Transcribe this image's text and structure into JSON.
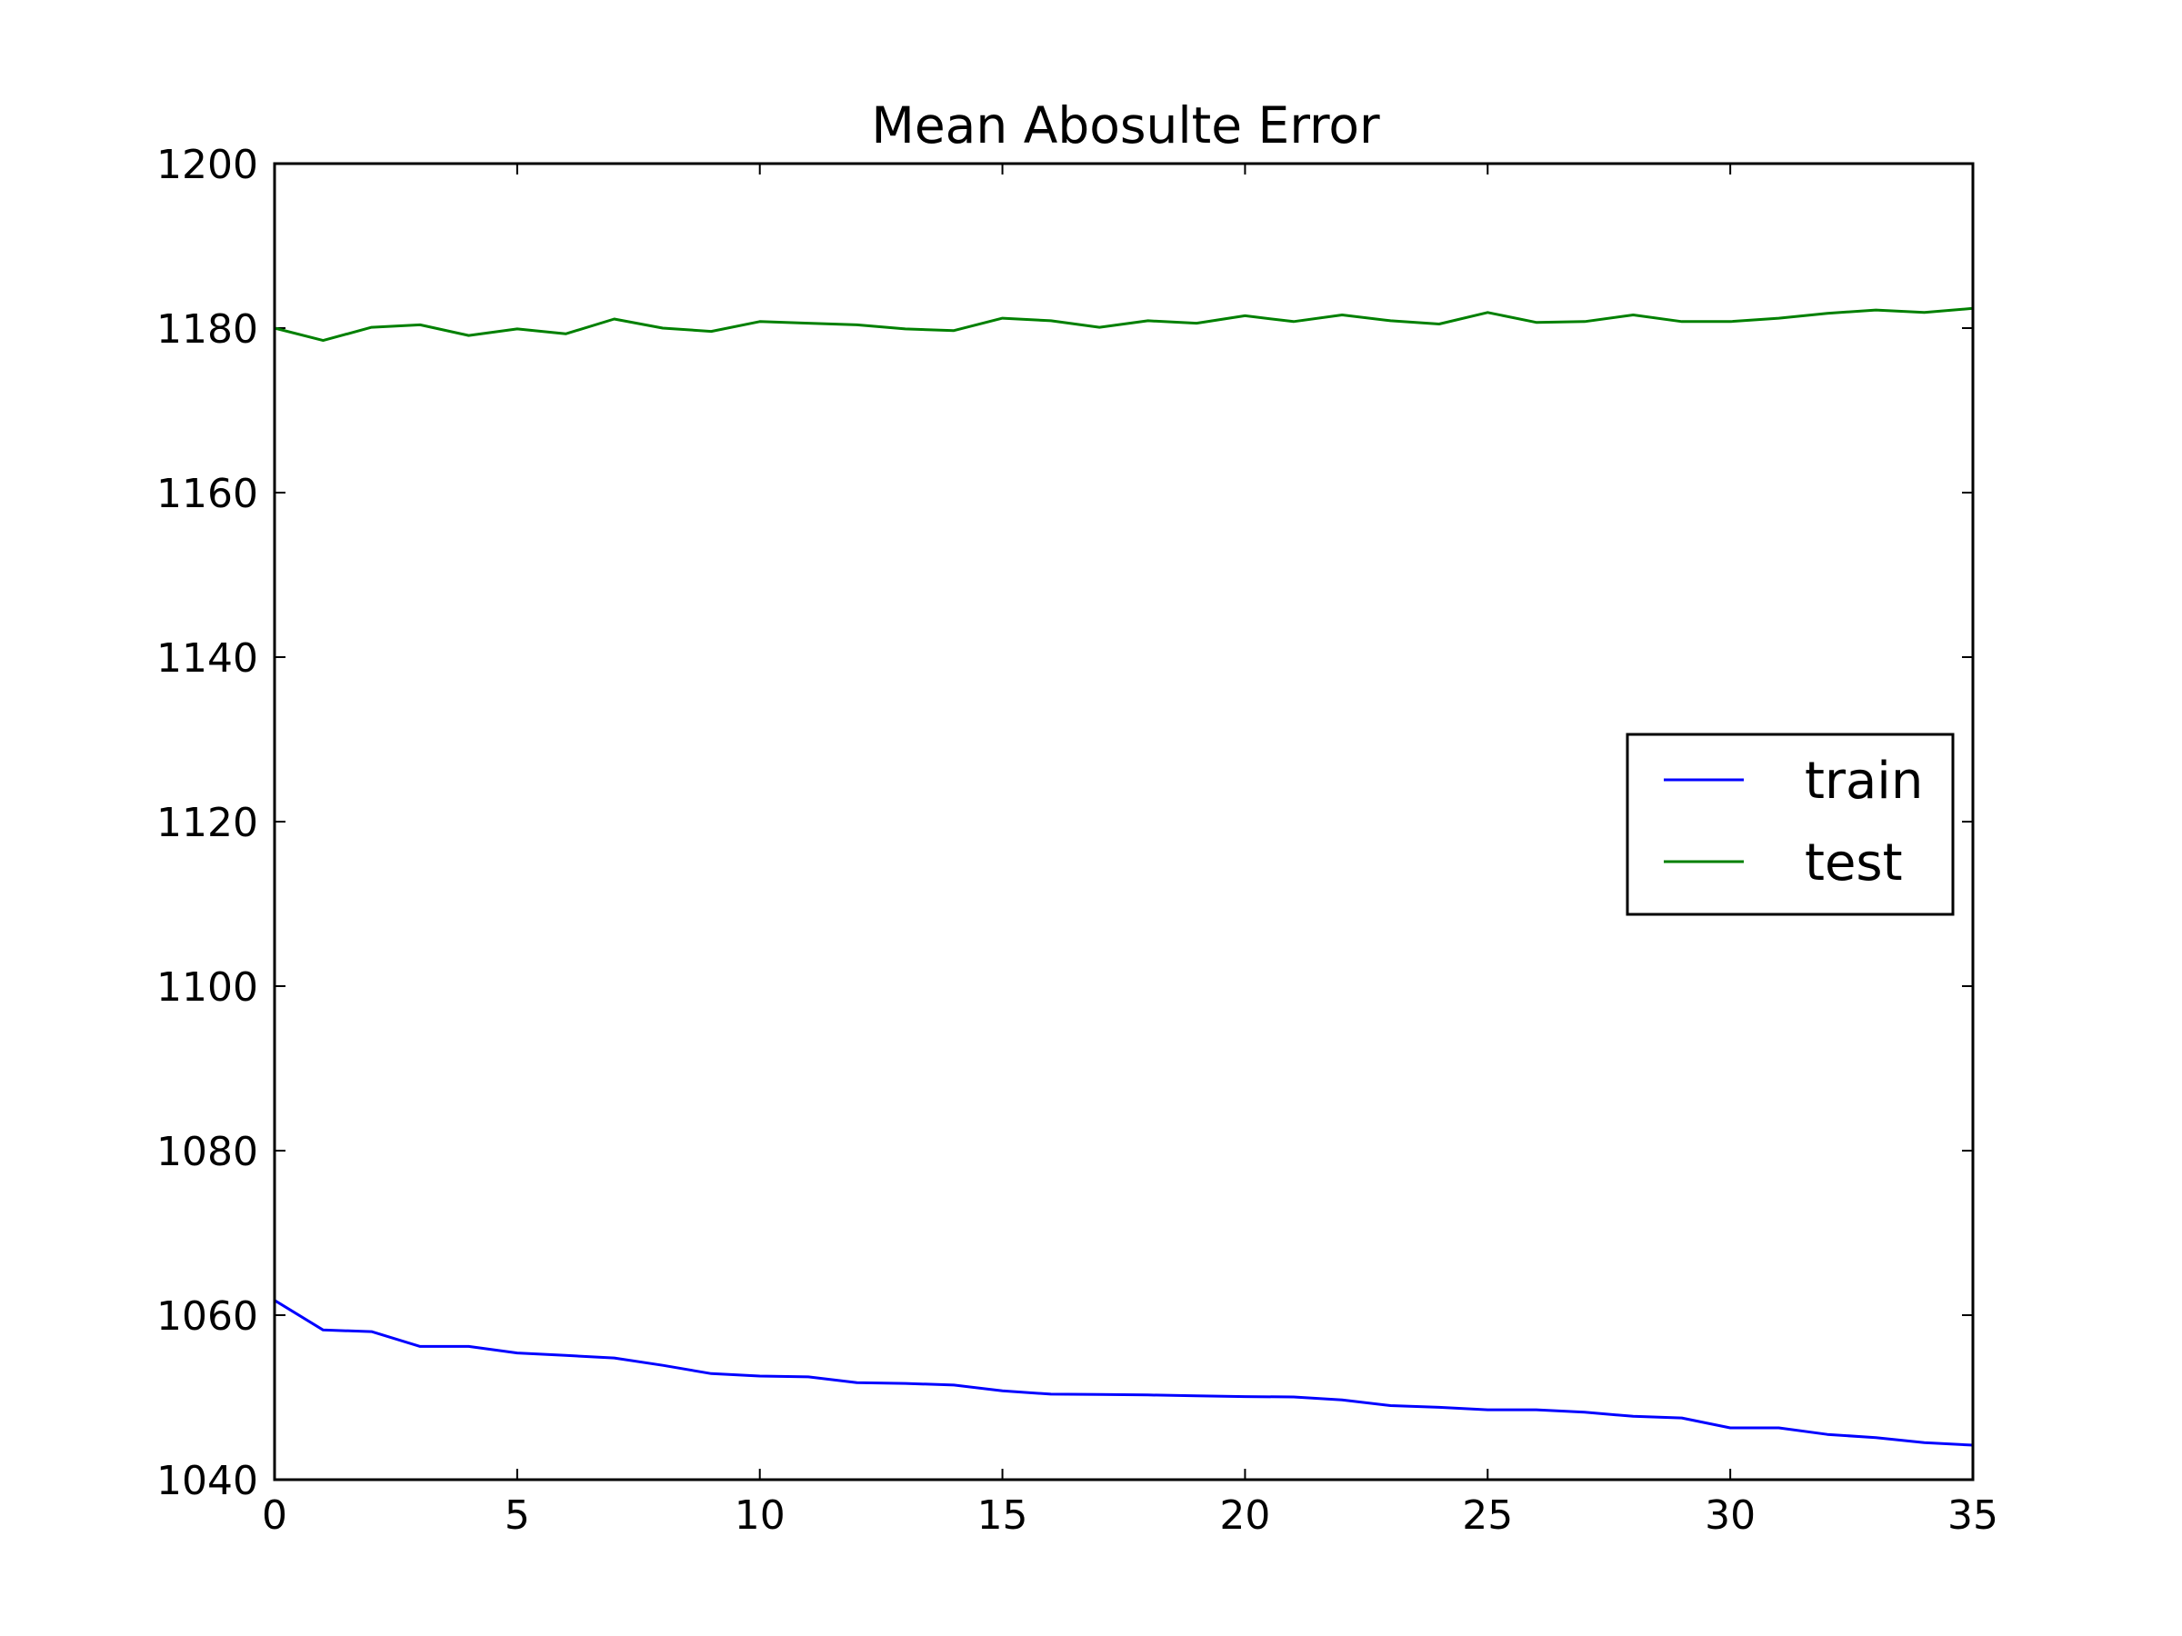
{
  "chart_data": {
    "type": "line",
    "title": "Mean Abosulte Error",
    "xlabel": "",
    "ylabel": "",
    "xlim": [
      0,
      35
    ],
    "ylim": [
      1040,
      1200
    ],
    "xticks": [
      0,
      5,
      10,
      15,
      20,
      25,
      30,
      35
    ],
    "yticks": [
      1040,
      1060,
      1080,
      1100,
      1120,
      1140,
      1160,
      1180,
      1200
    ],
    "grid": false,
    "legend_position": "center-right",
    "x": [
      0,
      1,
      2,
      3,
      4,
      5,
      6,
      7,
      8,
      9,
      10,
      11,
      12,
      13,
      14,
      15,
      16,
      17,
      18,
      19,
      20,
      21,
      22,
      23,
      24,
      25,
      26,
      27,
      28,
      29,
      30,
      31,
      32,
      33,
      34,
      35
    ],
    "series": [
      {
        "name": "train",
        "color": "#0000ff",
        "values": [
          1061.8,
          1058.2,
          1058.0,
          1056.2,
          1056.2,
          1055.4,
          1055.1,
          1054.8,
          1053.9,
          1052.9,
          1052.6,
          1052.5,
          1051.8,
          1051.7,
          1051.5,
          1050.8,
          1050.4,
          1050.35,
          1050.3,
          1050.2,
          1050.1,
          1050.05,
          1049.7,
          1049.0,
          1048.8,
          1048.5,
          1048.5,
          1048.2,
          1047.7,
          1047.5,
          1046.3,
          1046.3,
          1045.5,
          1045.1,
          1044.5,
          1044.2
        ]
      },
      {
        "name": "test",
        "color": "#008000",
        "values": [
          1180.0,
          1178.5,
          1180.1,
          1180.4,
          1179.1,
          1179.9,
          1179.3,
          1181.1,
          1180.0,
          1179.6,
          1180.8,
          1180.6,
          1180.4,
          1179.9,
          1179.7,
          1181.2,
          1180.9,
          1180.1,
          1180.9,
          1180.6,
          1181.5,
          1180.8,
          1181.6,
          1180.9,
          1180.5,
          1181.9,
          1180.7,
          1180.8,
          1181.6,
          1180.8,
          1180.8,
          1181.2,
          1181.8,
          1182.2,
          1181.9,
          1182.4
        ]
      }
    ]
  }
}
